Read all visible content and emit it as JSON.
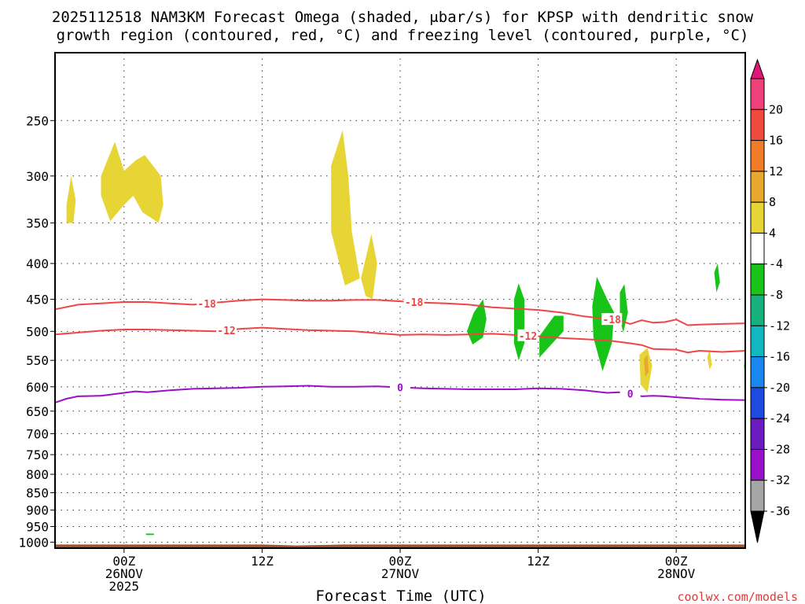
{
  "chart_data": {
    "type": "heatmap",
    "title_line1": "2025112518 NAM3KM Forecast Omega (shaded, μbar/s) for KPSP with dendritic snow",
    "title_line2": "growth region (contoured, red, °C) and freezing level (contoured, purple, °C)",
    "xlabel": "Forecast Time (UTC)",
    "credit": "coolwx.com/models",
    "x_ticks": [
      {
        "hour": 6,
        "l1": "00Z",
        "l2": "26NOV",
        "l3": "2025"
      },
      {
        "hour": 18,
        "l1": "12Z",
        "l2": "",
        "l3": ""
      },
      {
        "hour": 30,
        "l1": "00Z",
        "l2": "27NOV",
        "l3": ""
      },
      {
        "hour": 42,
        "l1": "12Z",
        "l2": "",
        "l3": ""
      },
      {
        "hour": 54,
        "l1": "00Z",
        "l2": "28NOV",
        "l3": ""
      }
    ],
    "xlim_hours": [
      0,
      60
    ],
    "ylim_hpa": [
      1020,
      200
    ],
    "y_ticks": [
      250,
      300,
      350,
      400,
      450,
      500,
      550,
      600,
      650,
      700,
      750,
      800,
      850,
      900,
      950,
      1000
    ],
    "grid": "dotted",
    "colorbar": {
      "labels": [
        "20",
        "16",
        "12",
        "8",
        "4",
        "-4",
        "-8",
        "-12",
        "-16",
        "-20",
        "-24",
        "-28",
        "-32",
        "-36"
      ],
      "bins": [
        "#f0417a",
        "#f04a3c",
        "#f07c28",
        "#e8a830",
        "#e6d534",
        "#ffffff",
        "#17c417",
        "#16b17d",
        "#12b8c0",
        "#1a86ef",
        "#1d4ae0",
        "#6a1cc0",
        "#9a10c8",
        "#a6a6a6"
      ],
      "top_arrow": "#e0157a",
      "bottom_arrow": "#000000"
    },
    "omega_regions": [
      {
        "value": 6,
        "color": "#e6d534",
        "points": [
          [
            1.0,
            330
          ],
          [
            1.4,
            300
          ],
          [
            1.8,
            325
          ],
          [
            1.6,
            350
          ],
          [
            1.0,
            350
          ]
        ]
      },
      {
        "value": 6,
        "color": "#e6d534",
        "points": [
          [
            4.0,
            300
          ],
          [
            5.2,
            268
          ],
          [
            6.0,
            295
          ],
          [
            7.0,
            285
          ],
          [
            7.8,
            280
          ],
          [
            9.2,
            300
          ],
          [
            9.4,
            330
          ],
          [
            9.0,
            350
          ],
          [
            7.6,
            338
          ],
          [
            6.8,
            320
          ],
          [
            6.0,
            330
          ],
          [
            4.8,
            348
          ],
          [
            4.0,
            320
          ]
        ]
      },
      {
        "value": 6,
        "color": "#e6d534",
        "points": [
          [
            24.0,
            290
          ],
          [
            25.0,
            258
          ],
          [
            25.5,
            300
          ],
          [
            25.8,
            360
          ],
          [
            26.5,
            420
          ],
          [
            25.2,
            430
          ],
          [
            24.0,
            360
          ]
        ]
      },
      {
        "value": 6,
        "color": "#e6d534",
        "points": [
          [
            26.6,
            420
          ],
          [
            27.5,
            363
          ],
          [
            28.0,
            400
          ],
          [
            27.6,
            450
          ],
          [
            27.0,
            445
          ]
        ]
      },
      {
        "value": 6,
        "color": "#e6d534",
        "points": [
          [
            50.8,
            540
          ],
          [
            51.5,
            528
          ],
          [
            51.9,
            560
          ],
          [
            51.5,
            612
          ],
          [
            50.9,
            595
          ]
        ]
      },
      {
        "value": 12,
        "color": "#e8a830",
        "points": [
          [
            51.2,
            548
          ],
          [
            51.5,
            540
          ],
          [
            51.6,
            572
          ],
          [
            51.3,
            580
          ]
        ]
      },
      {
        "value": 6,
        "color": "#e6d534",
        "points": [
          [
            56.7,
            545
          ],
          [
            56.9,
            530
          ],
          [
            57.1,
            558
          ],
          [
            56.9,
            567
          ]
        ]
      },
      {
        "value": -6,
        "color": "#17c417",
        "points": [
          [
            36.4,
            470
          ],
          [
            37.2,
            450
          ],
          [
            37.5,
            480
          ],
          [
            37.2,
            510
          ],
          [
            36.3,
            522
          ],
          [
            35.8,
            500
          ]
        ]
      },
      {
        "value": -6,
        "color": "#17c417",
        "points": [
          [
            39.9,
            450
          ],
          [
            40.3,
            427
          ],
          [
            40.8,
            450
          ],
          [
            40.8,
            520
          ],
          [
            40.3,
            550
          ],
          [
            39.9,
            520
          ]
        ]
      },
      {
        "value": -6,
        "color": "#17c417",
        "points": [
          [
            42.1,
            508
          ],
          [
            43.4,
            475
          ],
          [
            44.2,
            475
          ],
          [
            44.2,
            500
          ],
          [
            43.0,
            525
          ],
          [
            42.1,
            545
          ]
        ]
      },
      {
        "value": -6,
        "color": "#17c417",
        "points": [
          [
            46.7,
            460
          ],
          [
            47.1,
            418
          ],
          [
            48.0,
            450
          ],
          [
            48.6,
            470
          ],
          [
            48.4,
            520
          ],
          [
            47.6,
            570
          ],
          [
            46.8,
            510
          ]
        ]
      },
      {
        "value": -6,
        "color": "#17c417",
        "points": [
          [
            49.1,
            440
          ],
          [
            49.5,
            428
          ],
          [
            49.8,
            470
          ],
          [
            49.4,
            502
          ],
          [
            49.1,
            480
          ]
        ]
      },
      {
        "value": -6,
        "color": "#17c417",
        "points": [
          [
            57.3,
            412
          ],
          [
            57.6,
            400
          ],
          [
            57.8,
            425
          ],
          [
            57.5,
            440
          ]
        ]
      },
      {
        "value": -6,
        "color": "#17c417",
        "points": [
          [
            59.9,
            560
          ],
          [
            60.0,
            540
          ],
          [
            60.0,
            590
          ]
        ]
      },
      {
        "value": -6,
        "color": "#17c417",
        "points": [
          [
            7.9,
            972
          ],
          [
            8.6,
            972
          ],
          [
            8.6,
            977
          ],
          [
            7.9,
            977
          ]
        ]
      }
    ],
    "contours": [
      {
        "label": "-18",
        "color": "#f04545",
        "label_at": [
          [
            13.2,
            -18
          ],
          [
            31.2,
            -18
          ],
          [
            48.4,
            -18
          ]
        ],
        "points": [
          [
            0,
            465
          ],
          [
            2,
            458
          ],
          [
            4,
            456
          ],
          [
            6,
            454
          ],
          [
            8,
            454
          ],
          [
            10,
            456
          ],
          [
            12,
            458
          ],
          [
            14,
            455
          ],
          [
            16,
            452
          ],
          [
            18,
            450
          ],
          [
            20,
            451
          ],
          [
            22,
            452
          ],
          [
            24,
            452
          ],
          [
            26,
            451
          ],
          [
            28,
            451
          ],
          [
            30,
            453
          ],
          [
            32,
            455
          ],
          [
            34,
            456
          ],
          [
            36,
            458
          ],
          [
            38,
            462
          ],
          [
            40,
            464
          ],
          [
            42,
            466
          ],
          [
            44,
            470
          ],
          [
            46,
            476
          ],
          [
            48,
            480
          ],
          [
            49,
            482
          ],
          [
            50,
            488
          ],
          [
            51,
            482
          ],
          [
            52,
            486
          ],
          [
            53,
            485
          ],
          [
            54,
            481
          ],
          [
            55,
            490
          ],
          [
            56,
            489
          ],
          [
            58,
            488
          ],
          [
            60,
            487
          ]
        ]
      },
      {
        "label": "-12",
        "color": "#f04545",
        "label_at": [
          [
            14.9,
            -12
          ],
          [
            41.1,
            -12
          ]
        ],
        "points": [
          [
            0,
            505
          ],
          [
            2,
            502
          ],
          [
            4,
            499
          ],
          [
            6,
            497
          ],
          [
            8,
            497
          ],
          [
            10,
            498
          ],
          [
            12,
            499
          ],
          [
            14,
            500
          ],
          [
            16,
            496
          ],
          [
            18,
            494
          ],
          [
            20,
            496
          ],
          [
            22,
            498
          ],
          [
            24,
            499
          ],
          [
            26,
            500
          ],
          [
            28,
            503
          ],
          [
            30,
            506
          ],
          [
            32,
            505
          ],
          [
            34,
            506
          ],
          [
            36,
            505
          ],
          [
            38,
            504
          ],
          [
            40,
            506
          ],
          [
            42,
            508
          ],
          [
            44,
            511
          ],
          [
            46,
            513
          ],
          [
            48,
            515
          ],
          [
            50,
            520
          ],
          [
            51,
            523
          ],
          [
            52,
            530
          ],
          [
            54,
            531
          ],
          [
            55,
            536
          ],
          [
            56,
            533
          ],
          [
            58,
            535
          ],
          [
            60,
            533
          ]
        ]
      },
      {
        "label": "0",
        "color": "#9a10c8",
        "label_at": [
          [
            30.0,
            0
          ],
          [
            50.0,
            0
          ]
        ],
        "points": [
          [
            0,
            632
          ],
          [
            1,
            624
          ],
          [
            2,
            619
          ],
          [
            4,
            618
          ],
          [
            6,
            612
          ],
          [
            7,
            609
          ],
          [
            8,
            611
          ],
          [
            10,
            607
          ],
          [
            12,
            604
          ],
          [
            14,
            603
          ],
          [
            16,
            602
          ],
          [
            18,
            600
          ],
          [
            20,
            599
          ],
          [
            22,
            598
          ],
          [
            24,
            600
          ],
          [
            26,
            600
          ],
          [
            28,
            599
          ],
          [
            30,
            601
          ],
          [
            32,
            603
          ],
          [
            34,
            604
          ],
          [
            36,
            605
          ],
          [
            38,
            605
          ],
          [
            40,
            605
          ],
          [
            42,
            603
          ],
          [
            44,
            604
          ],
          [
            46,
            607
          ],
          [
            48,
            612
          ],
          [
            49,
            611
          ],
          [
            50,
            614
          ],
          [
            51,
            619
          ],
          [
            52,
            618
          ],
          [
            53,
            619
          ],
          [
            54,
            621
          ],
          [
            56,
            624
          ],
          [
            58,
            626
          ],
          [
            60,
            627
          ]
        ]
      }
    ],
    "terrain": {
      "color": "#a0522d",
      "surface_hpa": [
        [
          0,
          1008
        ],
        [
          18,
          1008
        ],
        [
          21,
          1011
        ],
        [
          24,
          1009
        ],
        [
          25,
          1008
        ],
        [
          60,
          1008
        ]
      ]
    }
  }
}
